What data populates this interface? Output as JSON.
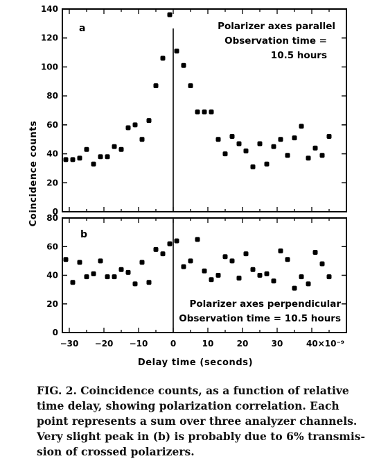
{
  "chart_data": [
    {
      "type": "scatter",
      "panel_label": "a",
      "annotation": [
        "Polarizer axes parallel",
        "Observation time =",
        "10.5 hours"
      ],
      "ylabel": "Coincidence counts",
      "xlim": [
        -32,
        50
      ],
      "ylim": [
        0,
        140
      ],
      "yticks": [
        0,
        20,
        40,
        60,
        80,
        100,
        120,
        140
      ],
      "x": [
        -31,
        -29,
        -27,
        -25,
        -23,
        -21,
        -19,
        -17,
        -15,
        -13,
        -11,
        -9,
        -7,
        -5,
        -3,
        -1,
        1,
        3,
        5,
        7,
        9,
        11,
        13,
        15,
        17,
        19,
        21,
        23,
        25,
        27,
        29,
        31,
        33,
        35,
        37,
        39,
        41,
        43,
        45
      ],
      "y": [
        36,
        36,
        37,
        43,
        33,
        38,
        38,
        45,
        43,
        58,
        60,
        50,
        63,
        87,
        106,
        136,
        111,
        101,
        87,
        69,
        69,
        69,
        50,
        40,
        52,
        47,
        42,
        31,
        47,
        33,
        45,
        50,
        39,
        51,
        59,
        37,
        44,
        39,
        52
      ]
    },
    {
      "type": "scatter",
      "panel_label": "b",
      "annotation": [
        "Polarizer axes perpendicular",
        "Observation time = 10.5 hours"
      ],
      "xlabel": "Delay time (seconds)",
      "xlim": [
        -32,
        50
      ],
      "ylim": [
        0,
        80
      ],
      "yticks": [
        0,
        20,
        40,
        60,
        80
      ],
      "xticks": [
        -30,
        -20,
        -10,
        0,
        10,
        20,
        30
      ],
      "xtick_labels": [
        "−30",
        "−20",
        "−10",
        "0",
        "10",
        "20",
        "30"
      ],
      "xtick_last_label": "40×10⁻⁹",
      "xtick_last_value": 40,
      "x": [
        -31,
        -29,
        -27,
        -25,
        -23,
        -21,
        -19,
        -17,
        -15,
        -13,
        -11,
        -9,
        -7,
        -5,
        -3,
        -1,
        1,
        3,
        5,
        7,
        9,
        11,
        13,
        15,
        17,
        19,
        21,
        23,
        25,
        27,
        29,
        31,
        33,
        35,
        37,
        39,
        41,
        43,
        45
      ],
      "y": [
        51,
        35,
        49,
        39,
        41,
        50,
        39,
        39,
        44,
        42,
        34,
        49,
        35,
        58,
        55,
        62,
        64,
        46,
        50,
        65,
        43,
        37,
        40,
        53,
        50,
        38,
        55,
        44,
        40,
        41,
        36,
        57,
        51,
        31,
        39,
        34,
        56,
        48,
        39
      ]
    }
  ],
  "caption": [
    "FIG. 2.  Coincidence counts, as a function of relative",
    "time delay, showing polarization correlation.  Each",
    "point represents a sum over three analyzer channels.",
    "Very slight peak in (b) is probably due to 6% transmis-",
    "sion of crossed polarizers."
  ]
}
